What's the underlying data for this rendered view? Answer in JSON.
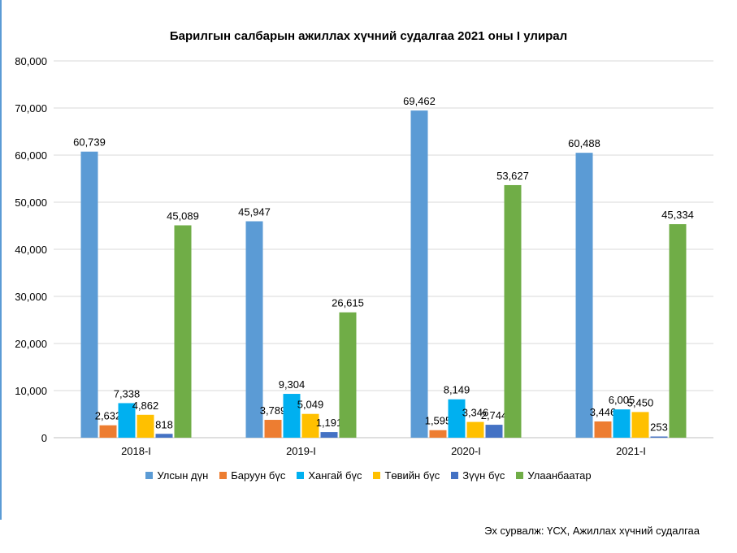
{
  "chart_data": {
    "type": "bar",
    "title": "Барилгын салбарын ажиллах хүчний судалгаа 2021 оны I улирал",
    "categories": [
      "2018-I",
      "2019-I",
      "2020-I",
      "2021-I"
    ],
    "ylim": [
      0,
      80000
    ],
    "yticks": [
      0,
      10000,
      20000,
      30000,
      40000,
      50000,
      60000,
      70000,
      80000
    ],
    "ytick_labels": [
      "0",
      "10,000",
      "20,000",
      "30,000",
      "40,000",
      "50,000",
      "60,000",
      "70,000",
      "80,000"
    ],
    "grid": true,
    "legend_position": "bottom",
    "series": [
      {
        "name": "Улсын дүн",
        "color": "#5b9bd5",
        "values": [
          60739,
          45947,
          69462,
          60488
        ],
        "labels": [
          "60,739",
          "45,947",
          "69,462",
          "60,488"
        ]
      },
      {
        "name": "Баруун бүс",
        "color": "#ed7d31",
        "values": [
          2632,
          3789,
          1595,
          3446
        ],
        "labels": [
          "2,632",
          "3,789",
          "1,595",
          "3,446"
        ]
      },
      {
        "name": "Хангай бүс",
        "color": "#00b0f0",
        "values": [
          7338,
          9304,
          8149,
          6005
        ],
        "labels": [
          "7,338",
          "9,304",
          "8,149",
          "6,005"
        ]
      },
      {
        "name": "Төвийн бүс",
        "color": "#ffc000",
        "values": [
          4862,
          5049,
          3346,
          5450
        ],
        "labels": [
          "4,862",
          "5,049",
          "3,346",
          "5,450"
        ]
      },
      {
        "name": "Зүүн бүс",
        "color": "#4472c4",
        "values": [
          818,
          1191,
          2744,
          253
        ],
        "labels": [
          "818",
          "1,191",
          "2,744",
          "253"
        ]
      },
      {
        "name": "Улаанбаатар",
        "color": "#70ad47",
        "values": [
          45089,
          26615,
          53627,
          45334
        ],
        "labels": [
          "45,089",
          "26,615",
          "53,627",
          "45,334"
        ]
      }
    ]
  },
  "source_text": "Эх сурвалж: ҮСХ, Ажиллах хүчний судалгаа"
}
